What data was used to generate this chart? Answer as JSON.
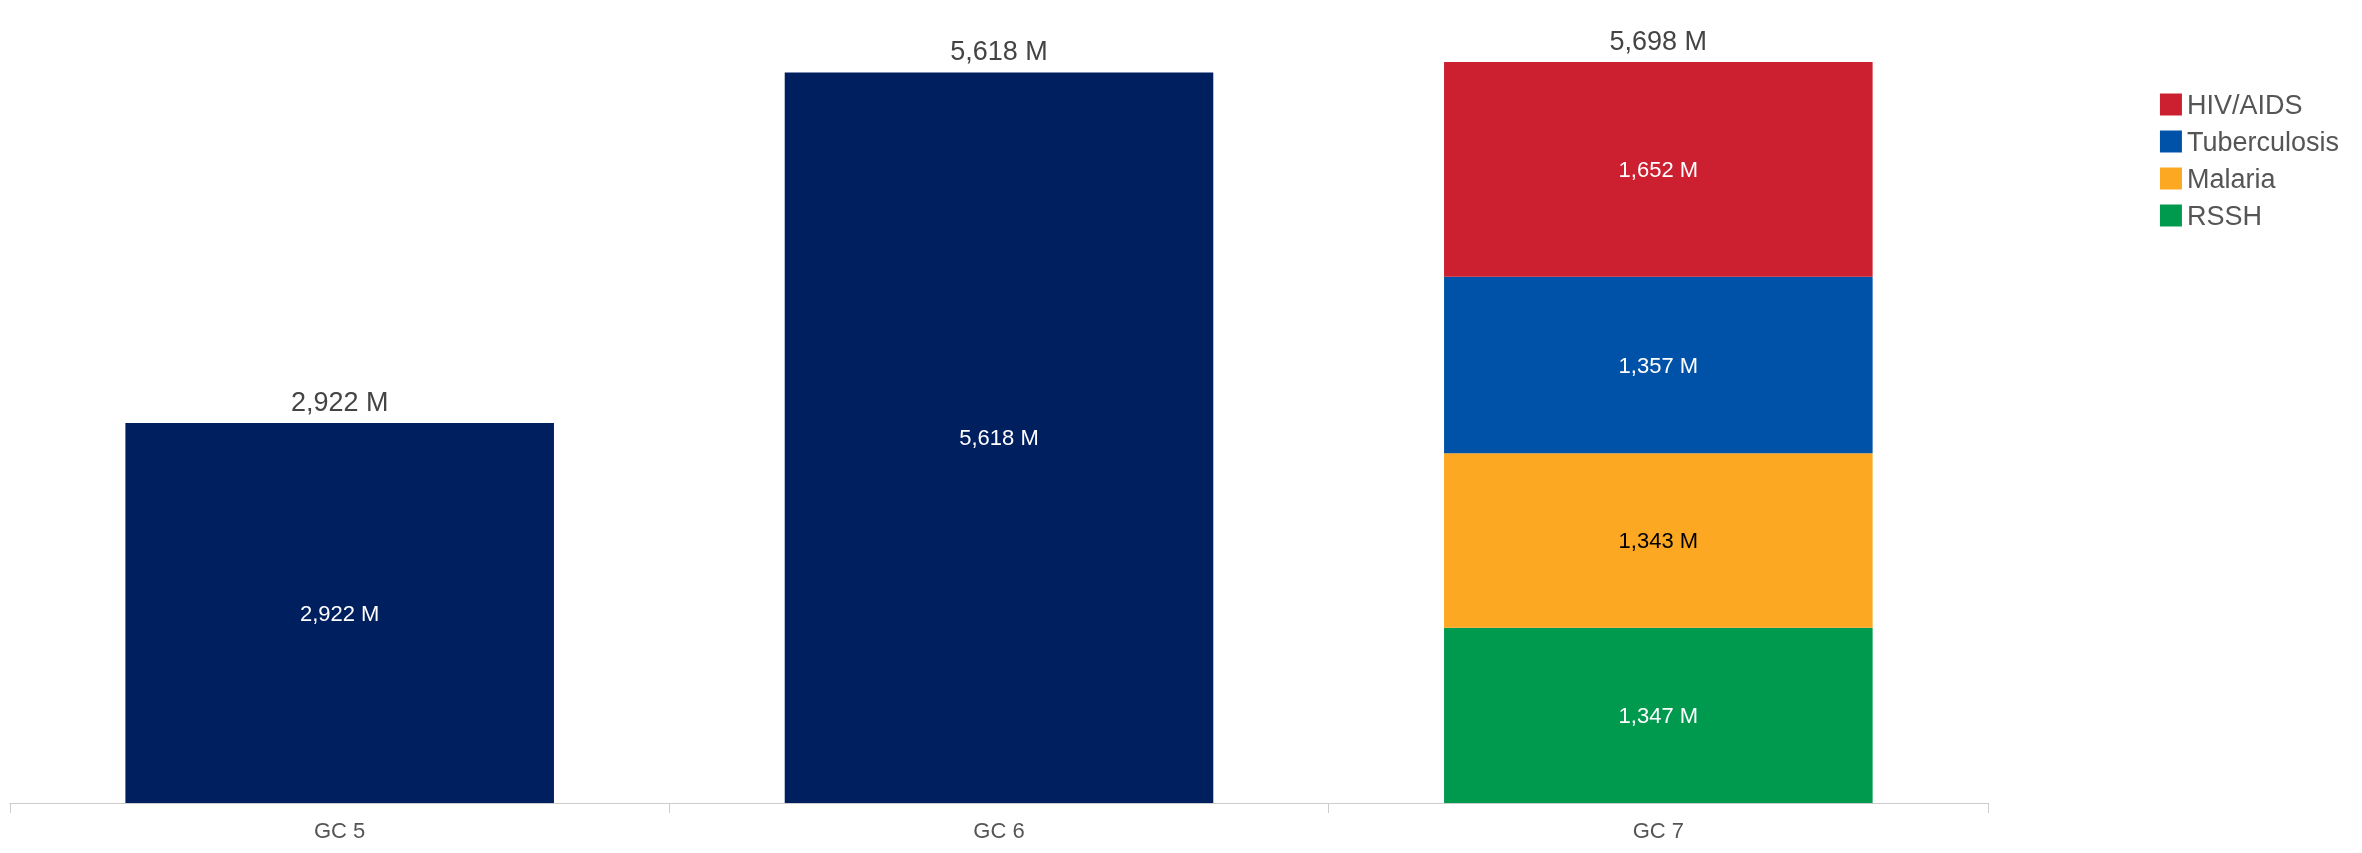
{
  "chart_data": {
    "type": "bar",
    "stacked": true,
    "categories": [
      "GC 5",
      "GC 6",
      "GC 7"
    ],
    "series": [
      {
        "color": "#001f5f",
        "values": [
          2922,
          5618,
          null
        ],
        "value_labels": [
          "2,922 M",
          "5,618 M",
          null
        ]
      },
      {
        "name": "RSSH",
        "color": "#009a4e",
        "values": [
          null,
          null,
          1347
        ],
        "value_labels": [
          null,
          null,
          "1,347 M"
        ]
      },
      {
        "name": "Malaria",
        "color": "#fca823",
        "values": [
          null,
          null,
          1343
        ],
        "value_labels": [
          null,
          null,
          "1,343 M"
        ]
      },
      {
        "name": "Tuberculosis",
        "color": "#0052a8",
        "values": [
          null,
          null,
          1357
        ],
        "value_labels": [
          null,
          null,
          "1,357 M"
        ]
      },
      {
        "name": "HIV/AIDS",
        "color": "#cc1f2f",
        "values": [
          null,
          null,
          1652
        ],
        "value_labels": [
          null,
          null,
          "1,652 M"
        ]
      }
    ],
    "totals": [
      "2,922 M",
      "5,618 M",
      "5,698 M"
    ],
    "legend": "top right",
    "tick_labels": "x"
  }
}
